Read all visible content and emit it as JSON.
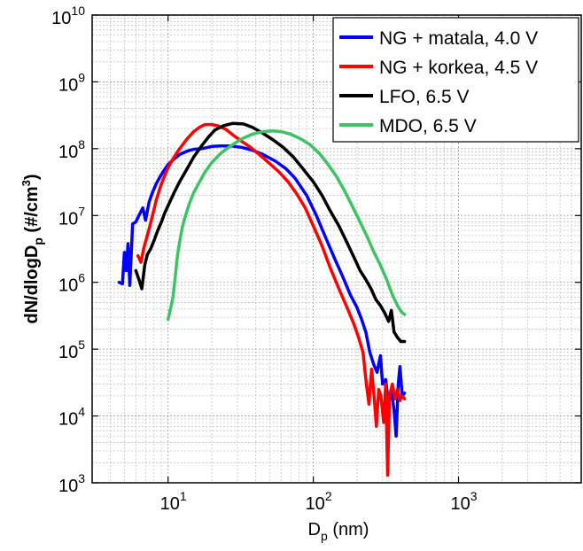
{
  "chart_data": {
    "type": "line",
    "xlabel": "D",
    "xlabel_sub": "p",
    "xlabel_unit": " (nm)",
    "ylabel_parts": [
      "dN/dlogD",
      "p",
      " (#/cm",
      "3",
      ")"
    ],
    "x_scale": "log",
    "y_scale": "log",
    "xlim": [
      3,
      7000
    ],
    "ylim": [
      1000,
      10000000000
    ],
    "grid": true,
    "legend_position": "top-right",
    "x_ticks": [
      {
        "base": "10",
        "exp": "1",
        "value": 10
      },
      {
        "base": "10",
        "exp": "2",
        "value": 100
      },
      {
        "base": "10",
        "exp": "3",
        "value": 1000
      }
    ],
    "y_ticks": [
      {
        "base": "10",
        "exp": "3",
        "value": 1000
      },
      {
        "base": "10",
        "exp": "4",
        "value": 10000
      },
      {
        "base": "10",
        "exp": "5",
        "value": 100000
      },
      {
        "base": "10",
        "exp": "6",
        "value": 1000000
      },
      {
        "base": "10",
        "exp": "7",
        "value": 10000000
      },
      {
        "base": "10",
        "exp": "8",
        "value": 100000000
      },
      {
        "base": "10",
        "exp": "9",
        "value": 1000000000
      },
      {
        "base": "10",
        "exp": "10",
        "value": 10000000000
      }
    ],
    "series": [
      {
        "name": "NG + matala, 4.0 V",
        "color": "#0000ff",
        "points": [
          [
            4.6,
            1000000.0
          ],
          [
            4.85,
            950000.0
          ],
          [
            5.0,
            2800000.0
          ],
          [
            5.15,
            1500000.0
          ],
          [
            5.3,
            3800000.0
          ],
          [
            5.45,
            900000.0
          ],
          [
            5.7,
            7500000.0
          ],
          [
            6.0,
            8000000.0
          ],
          [
            6.3,
            10000000.0
          ],
          [
            6.7,
            13000000.0
          ],
          [
            7.0,
            8500000.0
          ],
          [
            7.4,
            16000000.0
          ],
          [
            7.8,
            22000000.0
          ],
          [
            8.3,
            30000000.0
          ],
          [
            8.8,
            38000000.0
          ],
          [
            9.3,
            46000000.0
          ],
          [
            10.0,
            58000000.0
          ],
          [
            11.0,
            70000000.0
          ],
          [
            12.0,
            82000000.0
          ],
          [
            13.5,
            92000000.0
          ],
          [
            15.0,
            98000000.0
          ],
          [
            17.0,
            100000000.0
          ],
          [
            20.0,
            108000000.0
          ],
          [
            23.0,
            110000000.0
          ],
          [
            27.0,
            110000000.0
          ],
          [
            32.0,
            105000000.0
          ],
          [
            38.0,
            95000000.0
          ],
          [
            45.0,
            82000000.0
          ],
          [
            55.0,
            65000000.0
          ],
          [
            65.0,
            50000000.0
          ],
          [
            75.0,
            36000000.0
          ],
          [
            90.0,
            20000000.0
          ],
          [
            105.0,
            10000000.0
          ],
          [
            120.0,
            5000000.0
          ],
          [
            140.0,
            2300000.0
          ],
          [
            160.0,
            1200000.0
          ],
          [
            180.0,
            650000.0
          ],
          [
            200.0,
            420000.0
          ],
          [
            215.0,
            280000.0
          ],
          [
            230.0,
            180000.0
          ],
          [
            245.0,
            90000.0
          ],
          [
            260.0,
            60000.0
          ],
          [
            275.0,
            45000.0
          ],
          [
            290.0,
            80000.0
          ],
          [
            300.0,
            30000.0
          ],
          [
            315.0,
            35000.0
          ],
          [
            330.0,
            15000.0
          ],
          [
            345.0,
            25000.0
          ],
          [
            360.0,
            12000.0
          ],
          [
            372.0,
            5000.0
          ],
          [
            385.0,
            30000.0
          ],
          [
            395.0,
            55000.0
          ],
          [
            410.0,
            20000.0
          ],
          [
            425.0,
            22000.0
          ]
        ]
      },
      {
        "name": "NG + korkea, 4.5 V",
        "color": "#ff0000",
        "points": [
          [
            6.2,
            2500000.0
          ],
          [
            6.5,
            2000000.0
          ],
          [
            6.8,
            3200000.0
          ],
          [
            7.1,
            4500000.0
          ],
          [
            7.5,
            7000000.0
          ],
          [
            7.9,
            11000000.0
          ],
          [
            8.3,
            17000000.0
          ],
          [
            8.8,
            26000000.0
          ],
          [
            9.4,
            38000000.0
          ],
          [
            10.0,
            52000000.0
          ],
          [
            11.0,
            75000000.0
          ],
          [
            12.0,
            100000000.0
          ],
          [
            13.5,
            140000000.0
          ],
          [
            15.0,
            180000000.0
          ],
          [
            16.5,
            210000000.0
          ],
          [
            18.0,
            230000000.0
          ],
          [
            20.0,
            230000000.0
          ],
          [
            22.0,
            220000000.0
          ],
          [
            25.0,
            195000000.0
          ],
          [
            28.0,
            160000000.0
          ],
          [
            32.0,
            130000000.0
          ],
          [
            37.0,
            105000000.0
          ],
          [
            43.0,
            80000000.0
          ],
          [
            50.0,
            60000000.0
          ],
          [
            58.0,
            45000000.0
          ],
          [
            67.0,
            32000000.0
          ],
          [
            77.0,
            21000000.0
          ],
          [
            88.0,
            13000000.0
          ],
          [
            100.0,
            7000000.0
          ],
          [
            115.0,
            3500000.0
          ],
          [
            130.0,
            1700000.0
          ],
          [
            150.0,
            800000.0
          ],
          [
            170.0,
            430000.0
          ],
          [
            190.0,
            240000.0
          ],
          [
            205.0,
            150000.0
          ],
          [
            220.0,
            90000.0
          ],
          [
            232.0,
            30000.0
          ],
          [
            242.0,
            15000.0
          ],
          [
            252.0,
            50000.0
          ],
          [
            262.0,
            20000.0
          ],
          [
            272.0,
            7000.0
          ],
          [
            282.0,
            25000.0
          ],
          [
            292.0,
            20000.0
          ],
          [
            305.0,
            8000.0
          ],
          [
            315.0,
            30000.0
          ],
          [
            325.0,
            1300.0
          ],
          [
            335.0,
            20000.0
          ],
          [
            350.0,
            30000.0
          ],
          [
            365.0,
            18000.0
          ],
          [
            380.0,
            25000.0
          ],
          [
            395.0,
            17000.0
          ],
          [
            410.0,
            20000.0
          ],
          [
            425.0,
            18000.0
          ]
        ]
      },
      {
        "name": "LFO, 6.5 V",
        "color": "#000000",
        "points": [
          [
            6.0,
            1500000.0
          ],
          [
            6.3,
            1100000.0
          ],
          [
            6.6,
            800000.0
          ],
          [
            6.9,
            1800000.0
          ],
          [
            7.2,
            2600000.0
          ],
          [
            7.6,
            3200000.0
          ],
          [
            8.0,
            4200000.0
          ],
          [
            8.5,
            6000000.0
          ],
          [
            9.0,
            8000000.0
          ],
          [
            9.5,
            11000000.0
          ],
          [
            10.0,
            14000000.0
          ],
          [
            11.0,
            22000000.0
          ],
          [
            12.0,
            32000000.0
          ],
          [
            13.5,
            50000000.0
          ],
          [
            15.0,
            75000000.0
          ],
          [
            17.0,
            110000000.0
          ],
          [
            19.0,
            150000000.0
          ],
          [
            21.0,
            190000000.0
          ],
          [
            24.0,
            220000000.0
          ],
          [
            28.0,
            240000000.0
          ],
          [
            33.0,
            235000000.0
          ],
          [
            38.0,
            210000000.0
          ],
          [
            45.0,
            170000000.0
          ],
          [
            53.0,
            135000000.0
          ],
          [
            62.0,
            105000000.0
          ],
          [
            73.0,
            75000000.0
          ],
          [
            85.0,
            50000000.0
          ],
          [
            100.0,
            32000000.0
          ],
          [
            115.0,
            20000000.0
          ],
          [
            130.0,
            12000000.0
          ],
          [
            150.0,
            7000000.0
          ],
          [
            170.0,
            4000000.0
          ],
          [
            190.0,
            2400000.0
          ],
          [
            210.0,
            1500000.0
          ],
          [
            230.0,
            1100000.0
          ],
          [
            250.0,
            800000.0
          ],
          [
            270.0,
            550000.0
          ],
          [
            290.0,
            450000.0
          ],
          [
            310.0,
            350000.0
          ],
          [
            330.0,
            260000.0
          ],
          [
            345.0,
            380000.0
          ],
          [
            360.0,
            180000.0
          ],
          [
            380.0,
            150000.0
          ],
          [
            400.0,
            130000.0
          ],
          [
            425.0,
            130000.0
          ]
        ]
      },
      {
        "name": "MDO, 6.5 V",
        "color": "#3cc464",
        "points": [
          [
            10.0,
            280000.0
          ],
          [
            10.4,
            400000.0
          ],
          [
            10.8,
            600000.0
          ],
          [
            11.2,
            1200000.0
          ],
          [
            11.6,
            2500000.0
          ],
          [
            12.0,
            4000000.0
          ],
          [
            12.5,
            6500000.0
          ],
          [
            13.0,
            9000000.0
          ],
          [
            14.0,
            15000000.0
          ],
          [
            15.0,
            22000000.0
          ],
          [
            16.5,
            32000000.0
          ],
          [
            18.0,
            45000000.0
          ],
          [
            20.0,
            62000000.0
          ],
          [
            23.0,
            85000000.0
          ],
          [
            27.0,
            110000000.0
          ],
          [
            32.0,
            140000000.0
          ],
          [
            38.0,
            165000000.0
          ],
          [
            45.0,
            180000000.0
          ],
          [
            52.0,
            185000000.0
          ],
          [
            60.0,
            180000000.0
          ],
          [
            70.0,
            165000000.0
          ],
          [
            82.0,
            140000000.0
          ],
          [
            95.0,
            115000000.0
          ],
          [
            110.0,
            85000000.0
          ],
          [
            125.0,
            60000000.0
          ],
          [
            145.0,
            38000000.0
          ],
          [
            165.0,
            23000000.0
          ],
          [
            185.0,
            14000000.0
          ],
          [
            210.0,
            8000000.0
          ],
          [
            235.0,
            4800000.0
          ],
          [
            260.0,
            2900000.0
          ],
          [
            290.0,
            1800000.0
          ],
          [
            320.0,
            1100000.0
          ],
          [
            350.0,
            650000.0
          ],
          [
            380.0,
            450000.0
          ],
          [
            405.0,
            360000.0
          ],
          [
            425.0,
            330000.0
          ]
        ]
      }
    ]
  }
}
